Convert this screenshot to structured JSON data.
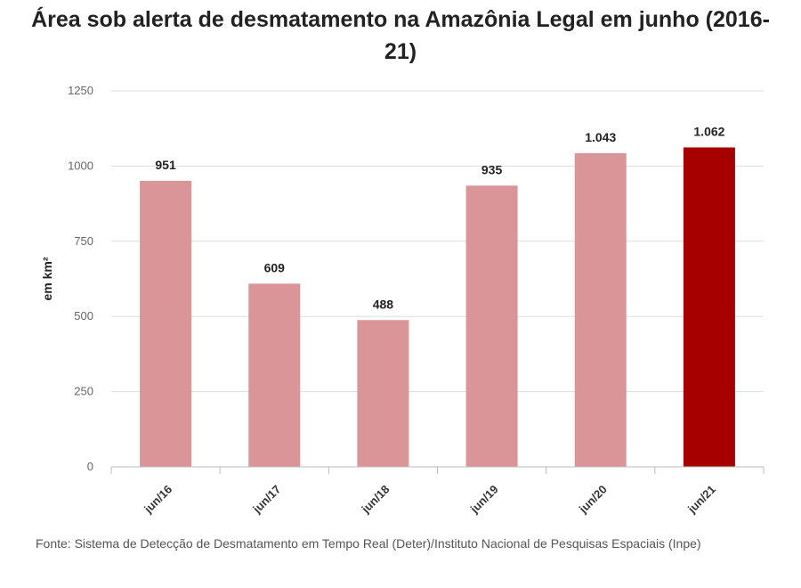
{
  "chart_data": {
    "type": "bar",
    "title": "Área sob alerta de desmatamento na Amazônia Legal em junho (2016-21)",
    "ylabel": "em km²",
    "xlabel": "",
    "categories": [
      "jun/16",
      "jun/17",
      "jun/18",
      "jun/19",
      "jun/20",
      "jun/21"
    ],
    "values": [
      951,
      609,
      488,
      935,
      1043,
      1062
    ],
    "value_labels": [
      "951",
      "609",
      "488",
      "935",
      "1.043",
      "1.062"
    ],
    "ylim": [
      0,
      1250
    ],
    "yticks": [
      0,
      250,
      500,
      750,
      1000,
      1250
    ],
    "grid": true,
    "colors": {
      "default_bar": "#d99597",
      "highlight_bar": "#a60000",
      "grid": "#dddddd",
      "axis": "#bbbbbb"
    },
    "highlight_index": 5
  },
  "source": "Fonte: Sistema de Detecção de Desmatamento em Tempo Real (Deter)/Instituto Nacional de Pesquisas Espaciais (Inpe)"
}
